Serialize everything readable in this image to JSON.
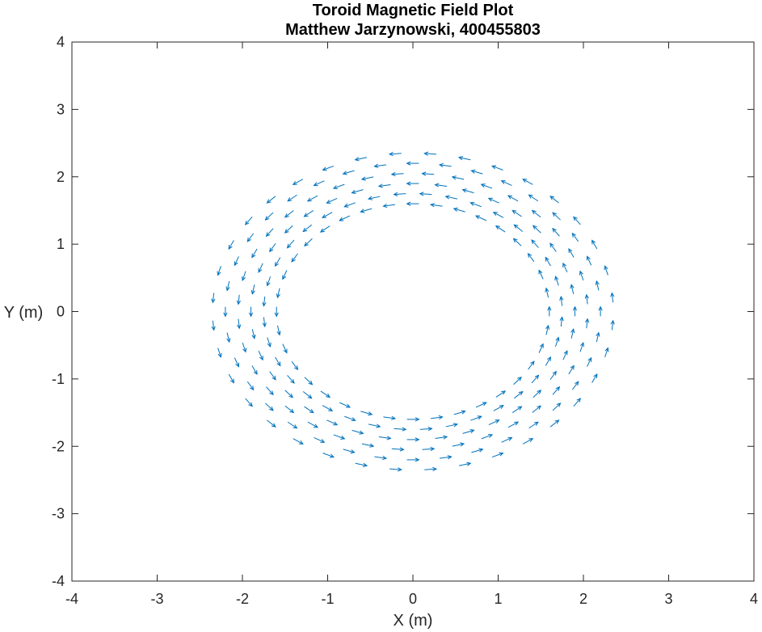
{
  "chart_data": {
    "type": "quiver",
    "title": [
      "Toroid Magnetic Field Plot",
      "Matthew Jarzynowski, 400455803"
    ],
    "xlabel": "X (m)",
    "ylabel": "Y (m)",
    "xlim": [
      -4,
      4
    ],
    "ylim": [
      -4,
      4
    ],
    "xticks": [
      "-4",
      "-3",
      "-2",
      "-1",
      "0",
      "1",
      "2",
      "3",
      "4"
    ],
    "yticks": [
      "-4",
      "-3",
      "-2",
      "-1",
      "0",
      "1",
      "2",
      "3",
      "4"
    ],
    "grid": false,
    "field": {
      "rings": [
        1.6,
        1.75,
        1.9,
        2.05,
        2.2,
        2.35
      ],
      "points_per_ring": 36,
      "direction": "counterclockwise",
      "arrow_length": 0.14
    },
    "color": "#0072BD"
  }
}
